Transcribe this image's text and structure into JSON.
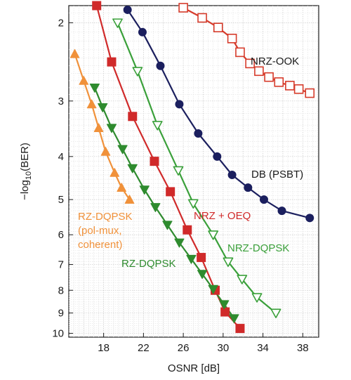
{
  "chart_data": {
    "type": "line",
    "xlabel": "OSNR [dB]",
    "ylabel_main": "−log",
    "ylabel_sub": "10",
    "ylabel_tail": "(BER)",
    "x_ticks": [
      18,
      22,
      26,
      30,
      34,
      38
    ],
    "y_ticks": [
      2,
      3,
      4,
      5,
      6,
      7,
      8,
      9,
      10
    ],
    "xlim": [
      14.5,
      39.6
    ],
    "y_scale": "log(-log10(BER))",
    "ylim": [
      1.83,
      10.2
    ],
    "grid": true,
    "series": [
      {
        "name": "NRZ-OOK",
        "color": "#d63b2b",
        "marker": "square-open",
        "x": [
          26.0,
          27.9,
          29.5,
          30.9,
          31.7,
          32.7,
          33.6,
          34.6,
          35.6,
          36.7,
          37.6,
          38.7
        ],
        "y": [
          1.85,
          1.95,
          2.05,
          2.17,
          2.33,
          2.47,
          2.57,
          2.65,
          2.72,
          2.77,
          2.82,
          2.88
        ]
      },
      {
        "name": "DB (PSBT)",
        "color": "#1b1f5e",
        "marker": "circle-filled",
        "x": [
          20.4,
          21.9,
          23.7,
          25.6,
          27.5,
          29.4,
          30.9,
          32.5,
          34.1,
          35.9,
          38.7
        ],
        "y": [
          1.87,
          2.1,
          2.5,
          3.05,
          3.55,
          4.0,
          4.4,
          4.7,
          5.0,
          5.3,
          5.5
        ]
      },
      {
        "name": "NRZ + OEQ",
        "color": "#d02a2a",
        "marker": "square-filled",
        "x": [
          17.3,
          18.8,
          20.9,
          23.1,
          24.7,
          26.4,
          27.8,
          29.2,
          30.2,
          31.7
        ],
        "y": [
          1.83,
          2.45,
          3.25,
          4.1,
          4.8,
          5.85,
          6.75,
          8.0,
          8.95,
          9.75
        ]
      },
      {
        "name": "NRZ-DQPSK",
        "color": "#3aa03a",
        "marker": "triangle-down-open",
        "x": [
          19.4,
          21.4,
          23.4,
          25.5,
          27.0,
          29.0,
          30.5,
          31.9,
          33.4,
          35.3
        ],
        "y": [
          2.0,
          2.57,
          3.4,
          4.3,
          5.1,
          6.0,
          6.9,
          7.55,
          8.3,
          9.0
        ]
      },
      {
        "name": "RZ-DQPSK",
        "color": "#2e8b2e",
        "marker": "triangle-down-filled",
        "x": [
          17.1,
          17.9,
          18.8,
          19.9,
          20.9,
          22.1,
          23.2,
          24.4,
          25.6,
          26.8,
          27.9,
          29.0,
          30.1,
          31.1
        ],
        "y": [
          2.8,
          3.1,
          3.45,
          3.85,
          4.25,
          4.75,
          5.2,
          5.7,
          6.25,
          6.8,
          7.35,
          7.95,
          8.6,
          9.25
        ]
      },
      {
        "name": "RZ-DQPSK (pol-mux, coherent)",
        "color": "#f0913a",
        "marker": "triangle-up-filled",
        "x": [
          15.1,
          16.0,
          16.8,
          17.5,
          18.2,
          19.1,
          19.8,
          20.6
        ],
        "y": [
          2.35,
          2.7,
          3.05,
          3.45,
          3.9,
          4.35,
          4.7,
          5.0
        ]
      }
    ],
    "annotations": [
      {
        "lines": [
          "NRZ-OOK"
        ],
        "series": "NRZ-OOK",
        "color": "#1a1a1a"
      },
      {
        "lines": [
          "DB (PSBT)"
        ],
        "series": "DB (PSBT)",
        "color": "#1a1a1a"
      },
      {
        "lines": [
          "NRZ + OEQ"
        ],
        "series": "NRZ + OEQ",
        "color": "#d02a2a"
      },
      {
        "lines": [
          "NRZ-DQPSK"
        ],
        "series": "NRZ-DQPSK",
        "color": "#3aa03a"
      },
      {
        "lines": [
          "RZ-DQPSK"
        ],
        "series": "RZ-DQPSK",
        "color": "#2e8b2e"
      },
      {
        "lines": [
          "RZ-DQPSK",
          "(pol-mux,",
          "coherent)"
        ],
        "series": "RZ-DQPSK (pol-mux, coherent)",
        "color": "#f0913a"
      }
    ]
  }
}
